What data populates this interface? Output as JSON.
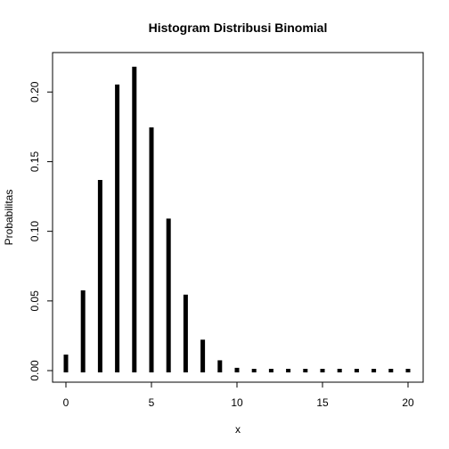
{
  "chart_data": {
    "type": "bar",
    "title": "Histogram Distribusi Binomial",
    "xlabel": "x",
    "ylabel": "Probabilitas",
    "x": [
      0,
      1,
      2,
      3,
      4,
      5,
      6,
      7,
      8,
      9,
      10,
      11,
      12,
      13,
      14,
      15,
      16,
      17,
      18,
      19,
      20
    ],
    "values": [
      0.0115,
      0.0576,
      0.1369,
      0.2054,
      0.2182,
      0.1746,
      0.1091,
      0.0545,
      0.0222,
      0.0074,
      0.002,
      0.0005,
      0.0001,
      0.0,
      0.0,
      0.0,
      0.0,
      0.0,
      0.0,
      0.0,
      0.0
    ],
    "xlim": [
      0,
      20
    ],
    "ylim": [
      0,
      0.22
    ],
    "xticks": [
      0,
      5,
      10,
      15,
      20
    ],
    "xtick_labels": [
      "0",
      "5",
      "10",
      "15",
      "20"
    ],
    "yticks": [
      0.0,
      0.05,
      0.1,
      0.15,
      0.2
    ],
    "ytick_labels": [
      "0.00",
      "0.05",
      "0.10",
      "0.15",
      "0.20"
    ],
    "grid": false,
    "legend": "none",
    "bar_color": "#000000"
  }
}
